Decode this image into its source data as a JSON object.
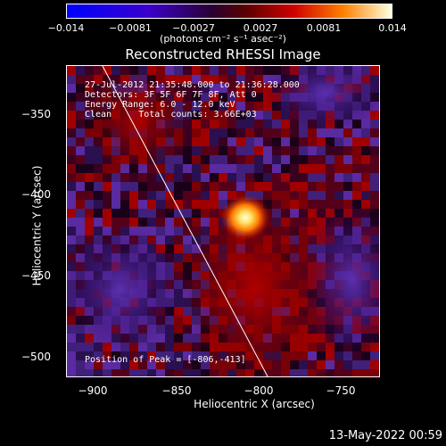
{
  "colorbar": {
    "ticks": [
      "−0.014",
      "−0.0081",
      "−0.0027",
      "0.0027",
      "0.0081",
      "0.014"
    ],
    "units": "(photons cm⁻² s⁻¹ asec⁻²)"
  },
  "title": "Reconstructed RHESSI Image",
  "info": {
    "time": "27-Jul-2012 21:35:48.000 to 21:36:28.000",
    "detectors": "Detectors: 3F 5F 6F 7F 8F, Att 0",
    "energy": "Energy Range: 6.0 - 12.0 keV",
    "clean": "Clean     Total counts: 3.66E+03",
    "peak": "Position of Peak = [-806,-413]"
  },
  "axes": {
    "xlabel": "Heliocentric X (arcsec)",
    "ylabel": "Heliocentric Y (arcsec)",
    "xticks": [
      "−900",
      "−850",
      "−800",
      "−750"
    ],
    "yticks": [
      "−350",
      "−400",
      "−450",
      "−500"
    ]
  },
  "footer": {
    "date": "13-May-2022 00:59"
  },
  "chart_data": {
    "type": "heatmap",
    "title": "Reconstructed RHESSI Image",
    "xlabel": "Heliocentric X (arcsec)",
    "ylabel": "Heliocentric Y (arcsec)",
    "xlim": [
      -915,
      -725
    ],
    "ylim": [
      -513,
      -327
    ],
    "peak": [
      -806,
      -413
    ],
    "colorbar_range": [
      -0.014,
      0.014
    ],
    "xticks": [
      -900,
      -850,
      -800,
      -750
    ],
    "yticks": [
      -350,
      -400,
      -450,
      -500
    ],
    "colorbar_ticks": [
      -0.014,
      -0.0081,
      -0.0027,
      0.0027,
      0.0081,
      0.014
    ],
    "limb_line": [
      [
        -900,
        -327
      ],
      [
        -792,
        -513
      ]
    ],
    "grid": false
  }
}
